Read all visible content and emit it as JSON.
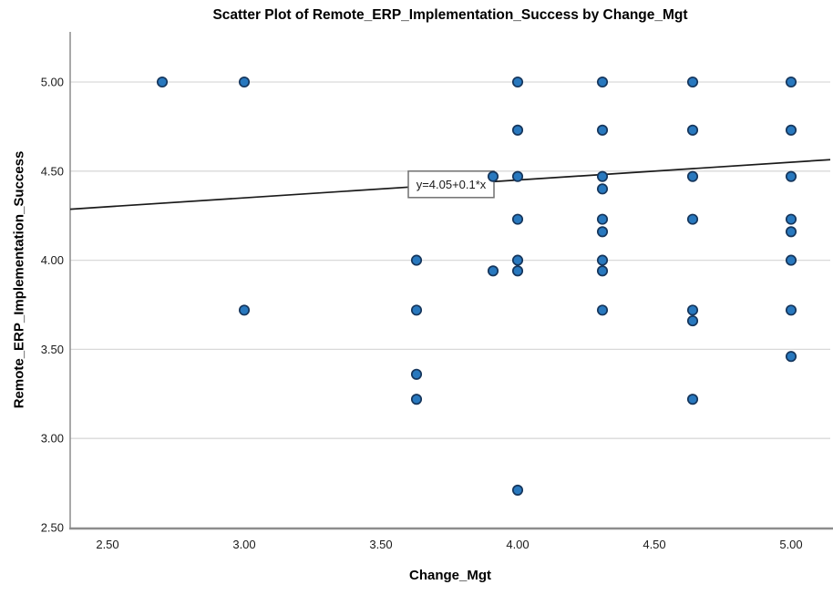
{
  "chart_data": {
    "type": "scatter",
    "title": "Scatter Plot of Remote_ERP_Implementation_Success by Change_Mgt",
    "xlabel": "Change_Mgt",
    "ylabel": "Remote_ERP_Implementation_Success",
    "xlim": [
      2.3633,
      5.1433
    ],
    "ylim": [
      2.5,
      5.2812
    ],
    "grid": "horizontal-only",
    "legend": "none",
    "x_ticks": [
      {
        "value": 2.5,
        "label": "2.50"
      },
      {
        "value": 3.0,
        "label": "3.00"
      },
      {
        "value": 3.5,
        "label": "3.50"
      },
      {
        "value": 4.0,
        "label": "4.00"
      },
      {
        "value": 4.5,
        "label": "4.50"
      },
      {
        "value": 5.0,
        "label": "5.00"
      }
    ],
    "y_ticks": [
      {
        "value": 2.5,
        "label": "2.50"
      },
      {
        "value": 3.0,
        "label": "3.00"
      },
      {
        "value": 3.5,
        "label": "3.50"
      },
      {
        "value": 4.0,
        "label": "4.00"
      },
      {
        "value": 4.5,
        "label": "4.50"
      },
      {
        "value": 5.0,
        "label": "5.00"
      }
    ],
    "points": [
      [
        2.7,
        5.0
      ],
      [
        3.0,
        5.0
      ],
      [
        3.0,
        3.72
      ],
      [
        3.63,
        4.0
      ],
      [
        3.63,
        3.72
      ],
      [
        3.63,
        3.36
      ],
      [
        3.63,
        3.22
      ],
      [
        3.91,
        4.47
      ],
      [
        3.91,
        3.94
      ],
      [
        4.0,
        5.0
      ],
      [
        4.0,
        4.73
      ],
      [
        4.0,
        4.47
      ],
      [
        4.0,
        4.23
      ],
      [
        4.0,
        4.0
      ],
      [
        4.0,
        3.94
      ],
      [
        4.0,
        2.71
      ],
      [
        4.31,
        5.0
      ],
      [
        4.31,
        4.73
      ],
      [
        4.31,
        4.47
      ],
      [
        4.31,
        4.4
      ],
      [
        4.31,
        4.23
      ],
      [
        4.31,
        4.16
      ],
      [
        4.31,
        4.0
      ],
      [
        4.31,
        3.94
      ],
      [
        4.31,
        3.72
      ],
      [
        4.64,
        5.0
      ],
      [
        4.64,
        4.73
      ],
      [
        4.64,
        4.47
      ],
      [
        4.64,
        4.23
      ],
      [
        4.64,
        3.72
      ],
      [
        4.64,
        3.66
      ],
      [
        4.64,
        3.22
      ],
      [
        5.0,
        5.0
      ],
      [
        5.0,
        4.73
      ],
      [
        5.0,
        4.47
      ],
      [
        5.0,
        4.23
      ],
      [
        5.0,
        4.16
      ],
      [
        5.0,
        4.0
      ],
      [
        5.0,
        3.72
      ],
      [
        5.0,
        3.46
      ]
    ],
    "fit_line": {
      "slope": 0.1,
      "intercept": 4.05,
      "label": "y=4.05+0.1*x",
      "label_anchor": {
        "x": 3.6,
        "y": 4.5
      }
    },
    "colors": {
      "point_fill": "#2878BE",
      "point_stroke": "#16365C",
      "fit_line": "#1A1A1A",
      "grid": "#D9D9D9",
      "axis": "#8C8C8C",
      "annotation_border": "#707070",
      "annotation_bg": "#FFFFFF",
      "text": "#000000"
    }
  }
}
